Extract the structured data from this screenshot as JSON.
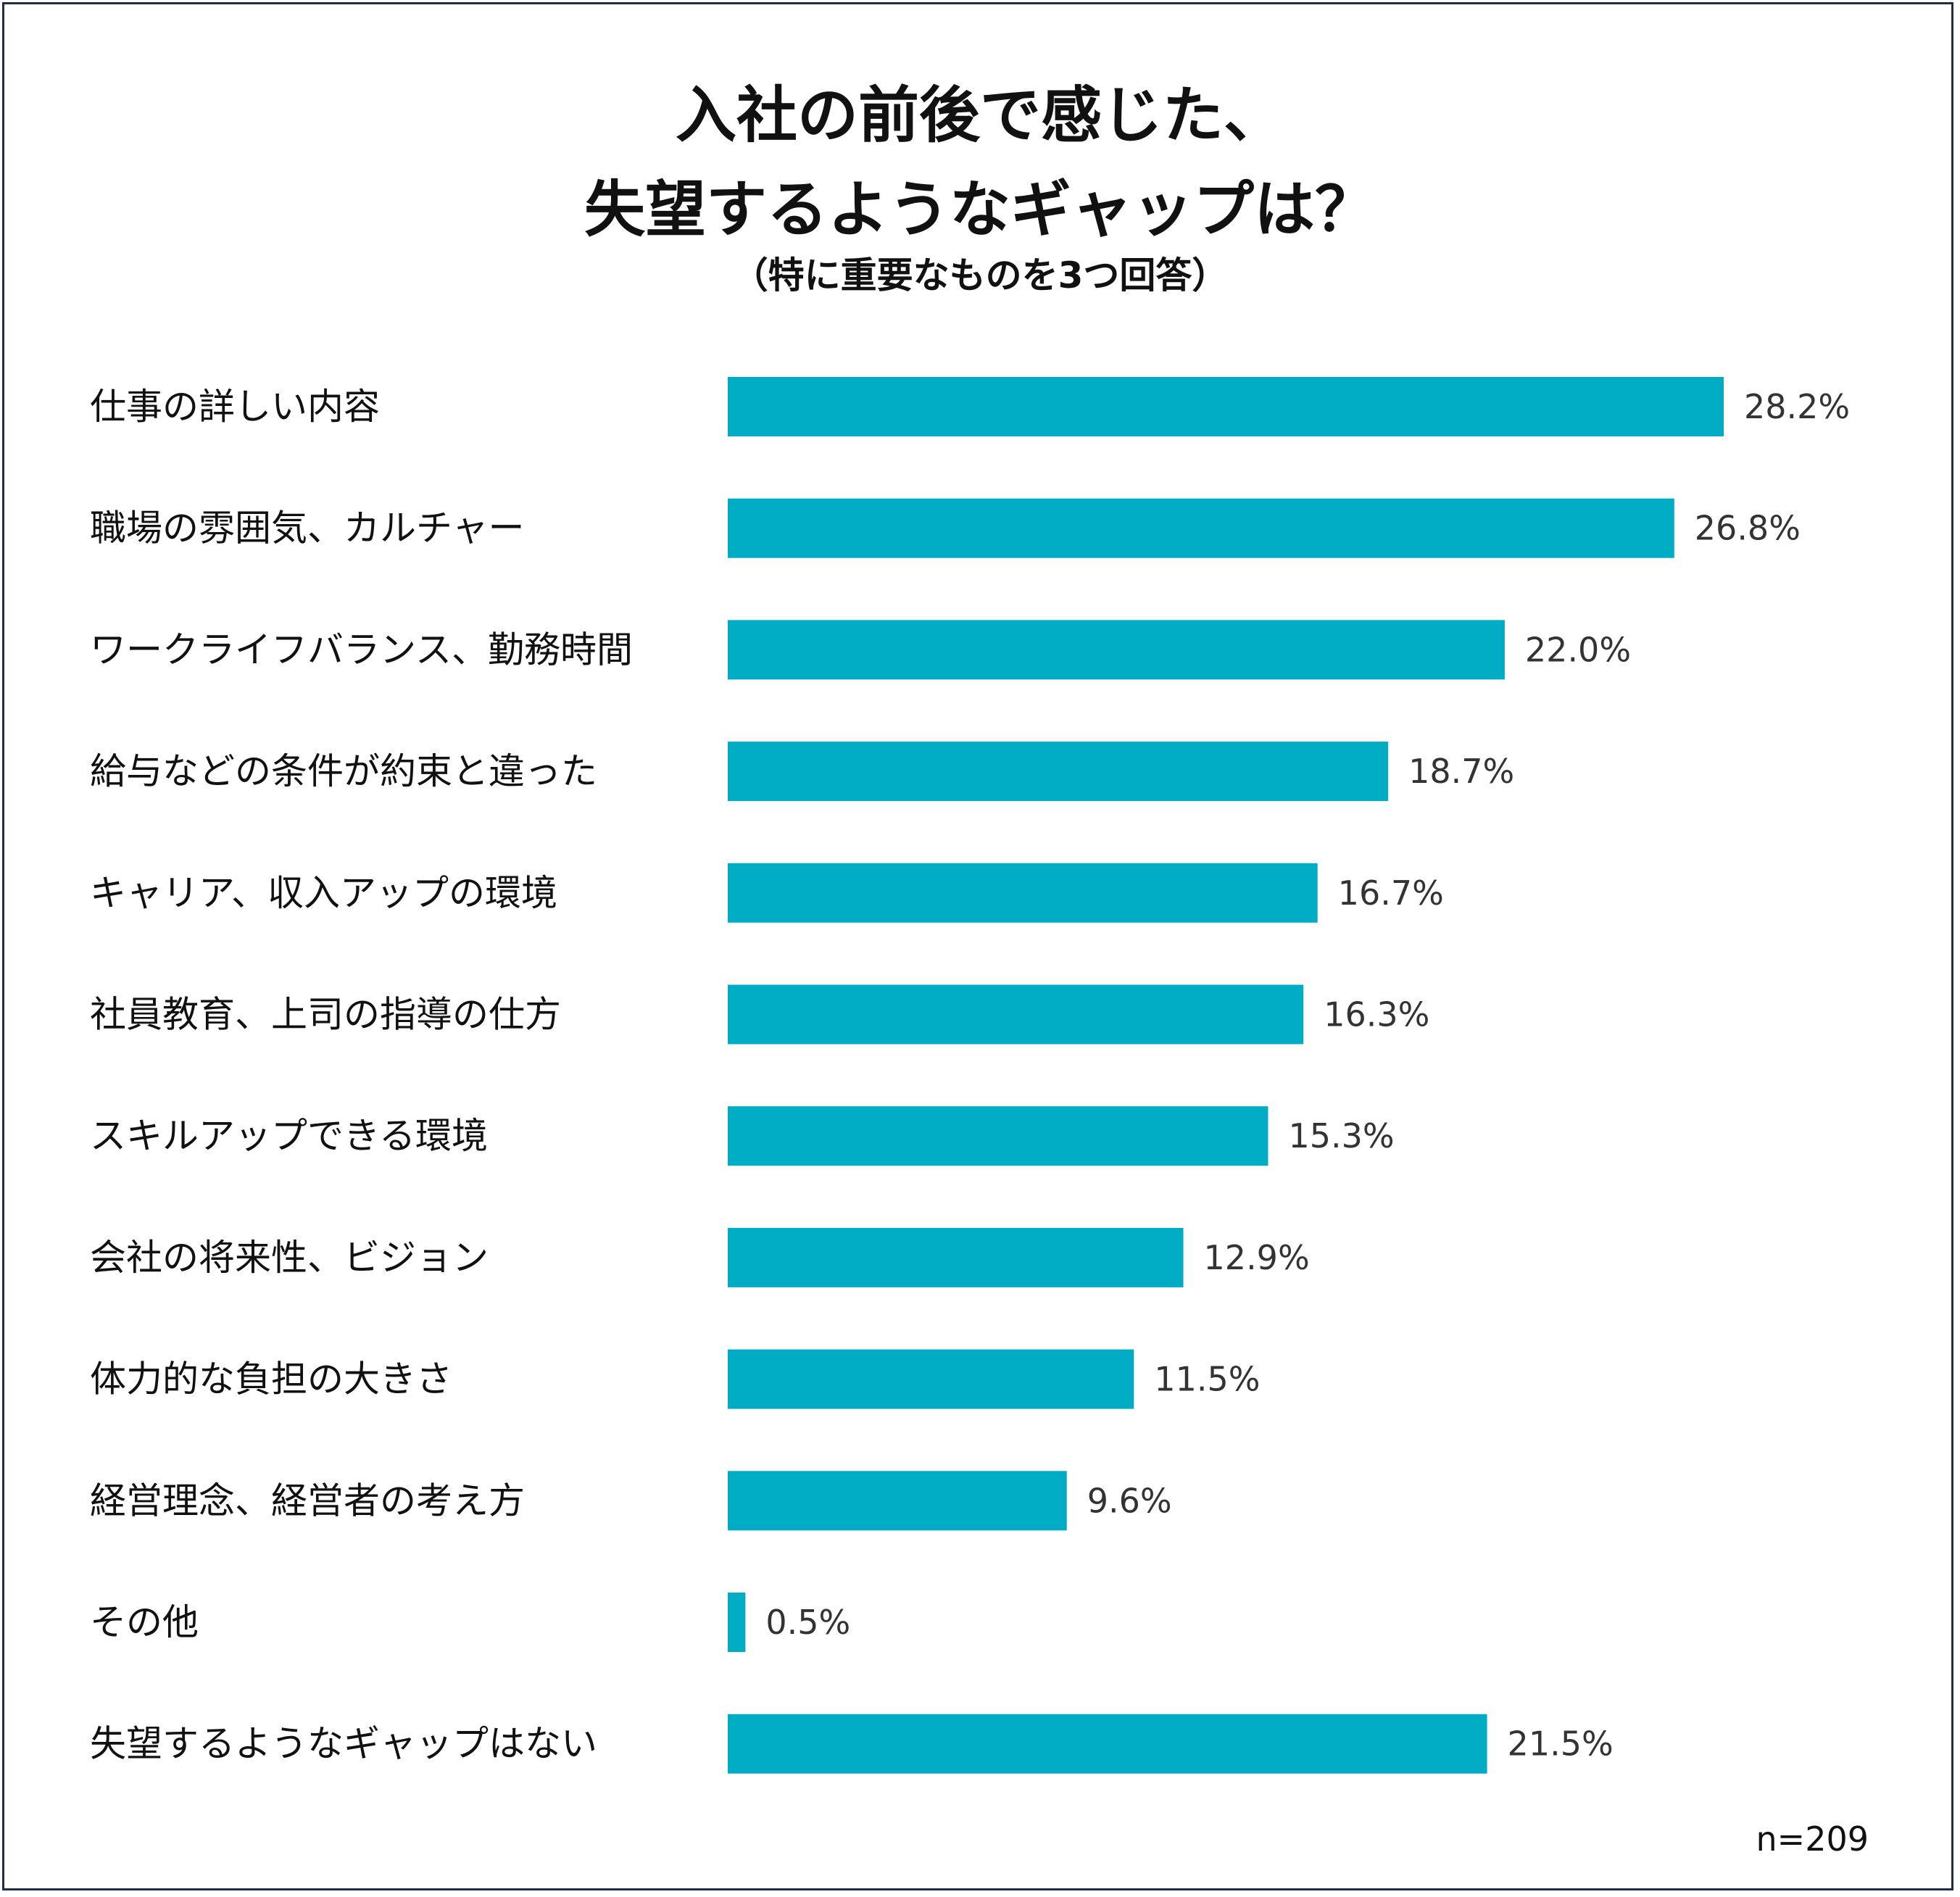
{
  "title_line1": "入社の前後で感じた、",
  "title_line2": "失望するようなギャップは？",
  "subtitle": "（特に重要なものを3つ回答）",
  "sample_size": "n=209",
  "colors": {
    "bar": "#00abc4",
    "border": "#1f2d45"
  },
  "chart_data": {
    "type": "bar",
    "orientation": "horizontal",
    "title": "入社の前後で感じた、失望するようなギャップは？（特に重要なものを3つ回答）",
    "xlabel": "",
    "ylabel": "",
    "unit": "%",
    "xlim": [
      0,
      28.2
    ],
    "grid": false,
    "categories": [
      "仕事の詳しい内容",
      "職場の雰囲気、カルチャー",
      "ワークライフバランス、勤務時間",
      "給与などの条件が約束と違った",
      "キャリア、収入アップの環境",
      "社員教育、上司の指導の仕方",
      "スキルアップできる環境",
      "会社の将来性、ビジョン",
      "体力的な負担の大きさ",
      "経営理念、経営者の考え方",
      "その他",
      "失望するようなギャップはない"
    ],
    "values": [
      28.2,
      26.8,
      22.0,
      18.7,
      16.7,
      16.3,
      15.3,
      12.9,
      11.5,
      9.6,
      0.5,
      21.5
    ],
    "value_labels": [
      "28.2%",
      "26.8%",
      "22.0%",
      "18.7%",
      "16.7%",
      "16.3%",
      "15.3%",
      "12.9%",
      "11.5%",
      "9.6%",
      "0.5%",
      "21.5%"
    ]
  }
}
